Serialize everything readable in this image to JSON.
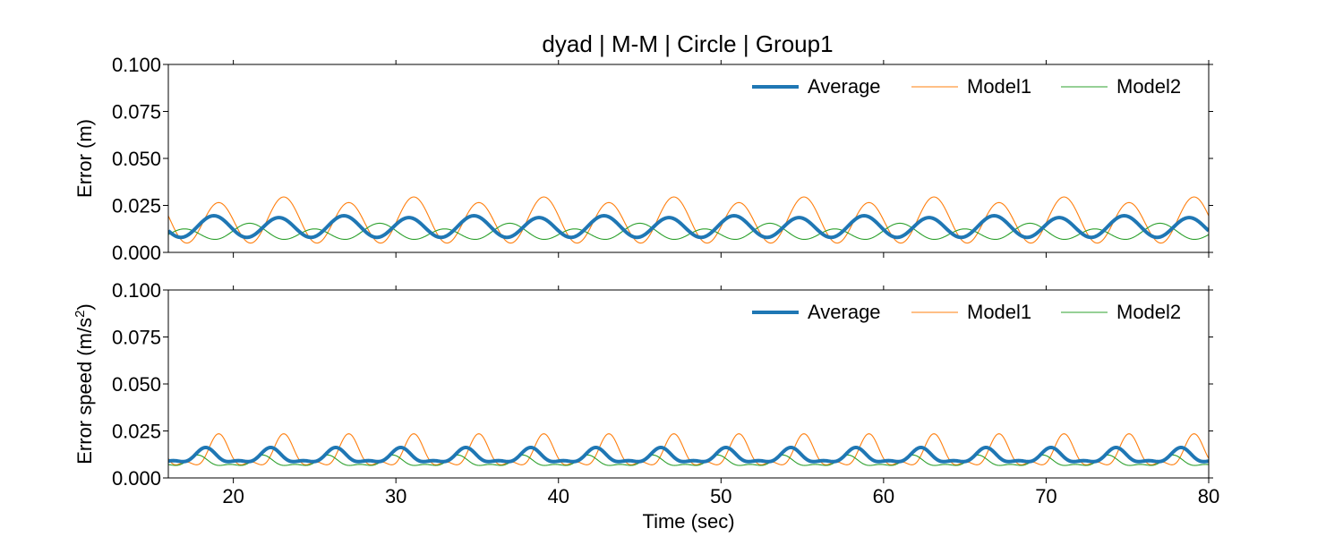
{
  "title": "dyad | M-M | Circle | Group1",
  "colors": {
    "Average": "#1f77b4",
    "Model1": "#ff7f0e",
    "Model2": "#2ca02c"
  },
  "chart_data": [
    {
      "type": "line",
      "ylabel": "Error (m)",
      "xlabel": "",
      "xlim": [
        16,
        80
      ],
      "ylim": [
        0,
        0.1
      ],
      "yticks": [
        "0.000",
        "0.025",
        "0.050",
        "0.075",
        "0.100"
      ],
      "xticks": [
        20,
        30,
        40,
        50,
        60,
        70,
        80
      ],
      "legend": "top-right",
      "series": [
        {
          "name": "Average",
          "params": {
            "base": 0.0135,
            "amp": 0.0055,
            "period": 4.0,
            "phase": 18.8,
            "amp2": 0.0005,
            "period2": 8.0
          }
        },
        {
          "name": "Model1",
          "params": {
            "base": 0.0165,
            "amp": 0.0115,
            "period": 4.0,
            "phase": 23.1,
            "amp2": 0.0015,
            "period2": 8.0
          }
        },
        {
          "name": "Model2",
          "params": {
            "base": 0.0105,
            "amp": 0.0035,
            "period": 4.0,
            "phase": 21.0,
            "amp2": 0.0015,
            "period2": 8.0
          }
        }
      ]
    },
    {
      "type": "line",
      "ylabel": "Error speed (m/s",
      "ylabel_sup": "2",
      "ylabel_end": ")",
      "xlabel": "Time (sec)",
      "xlim": [
        16,
        80
      ],
      "ylim": [
        0,
        0.1
      ],
      "yticks": [
        "0.000",
        "0.025",
        "0.050",
        "0.075",
        "0.100"
      ],
      "xticks": [
        20,
        30,
        40,
        50,
        60,
        70,
        80
      ],
      "legend": "top-right",
      "series": [
        {
          "name": "Average",
          "params": {
            "base": 0.0112,
            "amp": 0.0035,
            "period": 4.0,
            "phase": 18.3,
            "amp2": 0.0015,
            "period2": 2.0
          }
        },
        {
          "name": "Model1",
          "params": {
            "base": 0.0125,
            "amp": 0.0075,
            "period": 4.0,
            "phase": 19.1,
            "amp2": 0.0035,
            "period2": 2.0
          }
        },
        {
          "name": "Model2",
          "params": {
            "base": 0.0085,
            "amp": 0.0025,
            "period": 4.0,
            "phase": 17.8,
            "amp2": 0.0012,
            "period2": 2.0
          }
        }
      ]
    }
  ]
}
